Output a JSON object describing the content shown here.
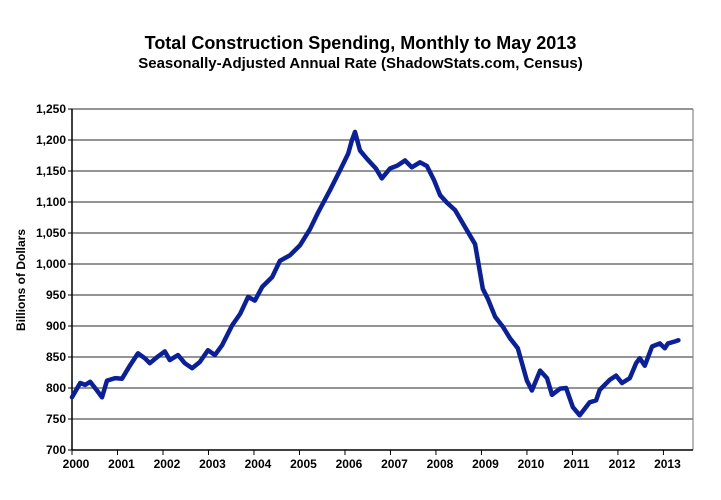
{
  "chart_data": {
    "type": "line",
    "title": "Total Construction Spending, Monthly to May 2013",
    "subtitle": "Seasonally-Adjusted Annual Rate (ShadowStats.com, Census)",
    "xlabel": "",
    "ylabel": "Billions of Dollars",
    "xlim": [
      2000,
      2013.65
    ],
    "ylim": [
      700,
      1250
    ],
    "grid": true,
    "x_ticks": [
      2000,
      2001,
      2002,
      2003,
      2004,
      2005,
      2006,
      2007,
      2008,
      2009,
      2010,
      2011,
      2012,
      2013
    ],
    "x_tick_labels": [
      "2000",
      "2001",
      "2002",
      "2003",
      "2004",
      "2005",
      "2006",
      "2007",
      "2008",
      "2009",
      "2010",
      "2011",
      "2012",
      "2013"
    ],
    "y_ticks": [
      700,
      750,
      800,
      850,
      900,
      950,
      1000,
      1050,
      1100,
      1150,
      1200,
      1250
    ],
    "y_tick_labels": [
      "700",
      "750",
      "800",
      "850",
      "900",
      "950",
      "1,000",
      "1,050",
      "1,100",
      "1,150",
      "1,200",
      "1,250"
    ],
    "series": [
      {
        "name": "Total Construction Spending",
        "color": "#0a1f9c",
        "points": [
          [
            2000.0,
            785
          ],
          [
            2000.18,
            808
          ],
          [
            2000.29,
            805
          ],
          [
            2000.4,
            810
          ],
          [
            2000.55,
            796
          ],
          [
            2000.66,
            785
          ],
          [
            2000.77,
            812
          ],
          [
            2000.95,
            816
          ],
          [
            2001.1,
            815
          ],
          [
            2001.27,
            836
          ],
          [
            2001.45,
            856
          ],
          [
            2001.6,
            848
          ],
          [
            2001.71,
            840
          ],
          [
            2001.89,
            851
          ],
          [
            2002.04,
            859
          ],
          [
            2002.15,
            845
          ],
          [
            2002.33,
            853
          ],
          [
            2002.48,
            840
          ],
          [
            2002.64,
            832
          ],
          [
            2002.81,
            842
          ],
          [
            2002.99,
            861
          ],
          [
            2003.14,
            853
          ],
          [
            2003.3,
            869
          ],
          [
            2003.52,
            901
          ],
          [
            2003.7,
            920
          ],
          [
            2003.87,
            947
          ],
          [
            2004.02,
            941
          ],
          [
            2004.18,
            963
          ],
          [
            2004.4,
            979
          ],
          [
            2004.57,
            1005
          ],
          [
            2004.79,
            1014
          ],
          [
            2005.01,
            1030
          ],
          [
            2005.23,
            1056
          ],
          [
            2005.41,
            1083
          ],
          [
            2005.67,
            1119
          ],
          [
            2005.89,
            1151
          ],
          [
            2006.07,
            1178
          ],
          [
            2006.15,
            1199
          ],
          [
            2006.22,
            1213
          ],
          [
            2006.33,
            1183
          ],
          [
            2006.48,
            1170
          ],
          [
            2006.68,
            1154
          ],
          [
            2006.81,
            1138
          ],
          [
            2006.99,
            1154
          ],
          [
            2007.16,
            1159
          ],
          [
            2007.32,
            1167
          ],
          [
            2007.47,
            1156
          ],
          [
            2007.65,
            1164
          ],
          [
            2007.8,
            1158
          ],
          [
            2007.96,
            1135
          ],
          [
            2008.09,
            1111
          ],
          [
            2008.24,
            1099
          ],
          [
            2008.42,
            1087
          ],
          [
            2008.57,
            1068
          ],
          [
            2008.7,
            1052
          ],
          [
            2008.86,
            1032
          ],
          [
            2009.03,
            960
          ],
          [
            2009.14,
            944
          ],
          [
            2009.3,
            915
          ],
          [
            2009.47,
            899
          ],
          [
            2009.63,
            880
          ],
          [
            2009.8,
            864
          ],
          [
            2010.0,
            812
          ],
          [
            2010.11,
            796
          ],
          [
            2010.29,
            828
          ],
          [
            2010.44,
            816
          ],
          [
            2010.55,
            789
          ],
          [
            2010.73,
            799
          ],
          [
            2010.86,
            800
          ],
          [
            2011.01,
            769
          ],
          [
            2011.16,
            756
          ],
          [
            2011.38,
            777
          ],
          [
            2011.52,
            780
          ],
          [
            2011.6,
            797
          ],
          [
            2011.82,
            813
          ],
          [
            2011.96,
            820
          ],
          [
            2012.09,
            808
          ],
          [
            2012.26,
            816
          ],
          [
            2012.4,
            840
          ],
          [
            2012.48,
            848
          ],
          [
            2012.59,
            836
          ],
          [
            2012.75,
            867
          ],
          [
            2012.92,
            872
          ],
          [
            2013.03,
            864
          ],
          [
            2013.1,
            872
          ],
          [
            2013.25,
            875
          ],
          [
            2013.33,
            877
          ]
        ]
      }
    ]
  }
}
